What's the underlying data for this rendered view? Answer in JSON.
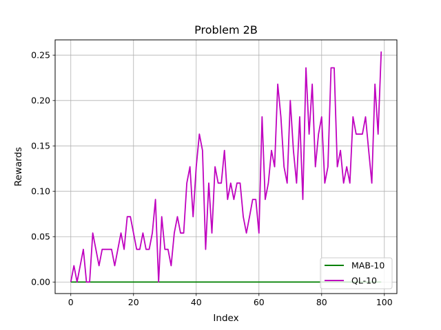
{
  "chart_data": {
    "type": "line",
    "title": "Problem 2B",
    "xlabel": "Index",
    "ylabel": "Rewards",
    "xlim": [
      -5,
      104
    ],
    "ylim": [
      -0.0127,
      0.2668
    ],
    "xticks": [
      0,
      20,
      40,
      60,
      80,
      100
    ],
    "xtick_labels": [
      "0",
      "20",
      "40",
      "60",
      "80",
      "100"
    ],
    "yticks": [
      0.0,
      0.05,
      0.1,
      0.15,
      0.2,
      0.25
    ],
    "ytick_labels": [
      "0.00",
      "0.05",
      "0.10",
      "0.15",
      "0.20",
      "0.25"
    ],
    "grid": true,
    "legend_position": "lower right",
    "x": [
      0,
      1,
      2,
      3,
      4,
      5,
      6,
      7,
      8,
      9,
      10,
      11,
      12,
      13,
      14,
      15,
      16,
      17,
      18,
      19,
      20,
      21,
      22,
      23,
      24,
      25,
      26,
      27,
      28,
      29,
      30,
      31,
      32,
      33,
      34,
      35,
      36,
      37,
      38,
      39,
      40,
      41,
      42,
      43,
      44,
      45,
      46,
      47,
      48,
      49,
      50,
      51,
      52,
      53,
      54,
      55,
      56,
      57,
      58,
      59,
      60,
      61,
      62,
      63,
      64,
      65,
      66,
      67,
      68,
      69,
      70,
      71,
      72,
      73,
      74,
      75,
      76,
      77,
      78,
      79,
      80,
      81,
      82,
      83,
      84,
      85,
      86,
      87,
      88,
      89,
      90,
      91,
      92,
      93,
      94,
      95,
      96,
      97,
      98,
      99
    ],
    "series": [
      {
        "name": "MAB-10",
        "color": "#008000",
        "values": [
          0,
          0,
          0,
          0,
          0,
          0,
          0,
          0,
          0,
          0,
          0,
          0,
          0,
          0,
          0,
          0,
          0,
          0,
          0,
          0,
          0,
          0,
          0,
          0,
          0,
          0,
          0,
          0,
          0,
          0,
          0,
          0,
          0,
          0,
          0,
          0,
          0,
          0,
          0,
          0,
          0,
          0,
          0,
          0,
          0,
          0,
          0,
          0,
          0,
          0,
          0,
          0,
          0,
          0,
          0,
          0,
          0,
          0,
          0,
          0,
          0,
          0,
          0,
          0,
          0,
          0,
          0,
          0,
          0,
          0,
          0,
          0,
          0,
          0,
          0,
          0,
          0,
          0,
          0,
          0,
          0,
          0,
          0,
          0,
          0,
          0,
          0,
          0,
          0,
          0,
          0,
          0,
          0,
          0,
          0,
          0,
          0,
          0,
          0,
          0
        ]
      },
      {
        "name": "QL-10",
        "color": "#bf00bf",
        "values": [
          0.0,
          0.018,
          0.0,
          0.018,
          0.036,
          0.0,
          0.0,
          0.054,
          0.036,
          0.018,
          0.036,
          0.036,
          0.036,
          0.036,
          0.018,
          0.036,
          0.054,
          0.036,
          0.072,
          0.072,
          0.054,
          0.036,
          0.036,
          0.054,
          0.036,
          0.036,
          0.054,
          0.091,
          0.0,
          0.072,
          0.036,
          0.036,
          0.018,
          0.054,
          0.072,
          0.054,
          0.054,
          0.109,
          0.127,
          0.072,
          0.127,
          0.163,
          0.145,
          0.036,
          0.109,
          0.054,
          0.127,
          0.109,
          0.109,
          0.145,
          0.091,
          0.109,
          0.091,
          0.109,
          0.109,
          0.072,
          0.054,
          0.072,
          0.091,
          0.091,
          0.054,
          0.182,
          0.091,
          0.109,
          0.145,
          0.127,
          0.218,
          0.182,
          0.127,
          0.109,
          0.2,
          0.145,
          0.109,
          0.182,
          0.091,
          0.236,
          0.163,
          0.218,
          0.127,
          0.163,
          0.182,
          0.109,
          0.127,
          0.236,
          0.236,
          0.127,
          0.145,
          0.109,
          0.127,
          0.109,
          0.182,
          0.163,
          0.163,
          0.163,
          0.182,
          0.145,
          0.109,
          0.218,
          0.163,
          0.254
        ]
      }
    ]
  }
}
